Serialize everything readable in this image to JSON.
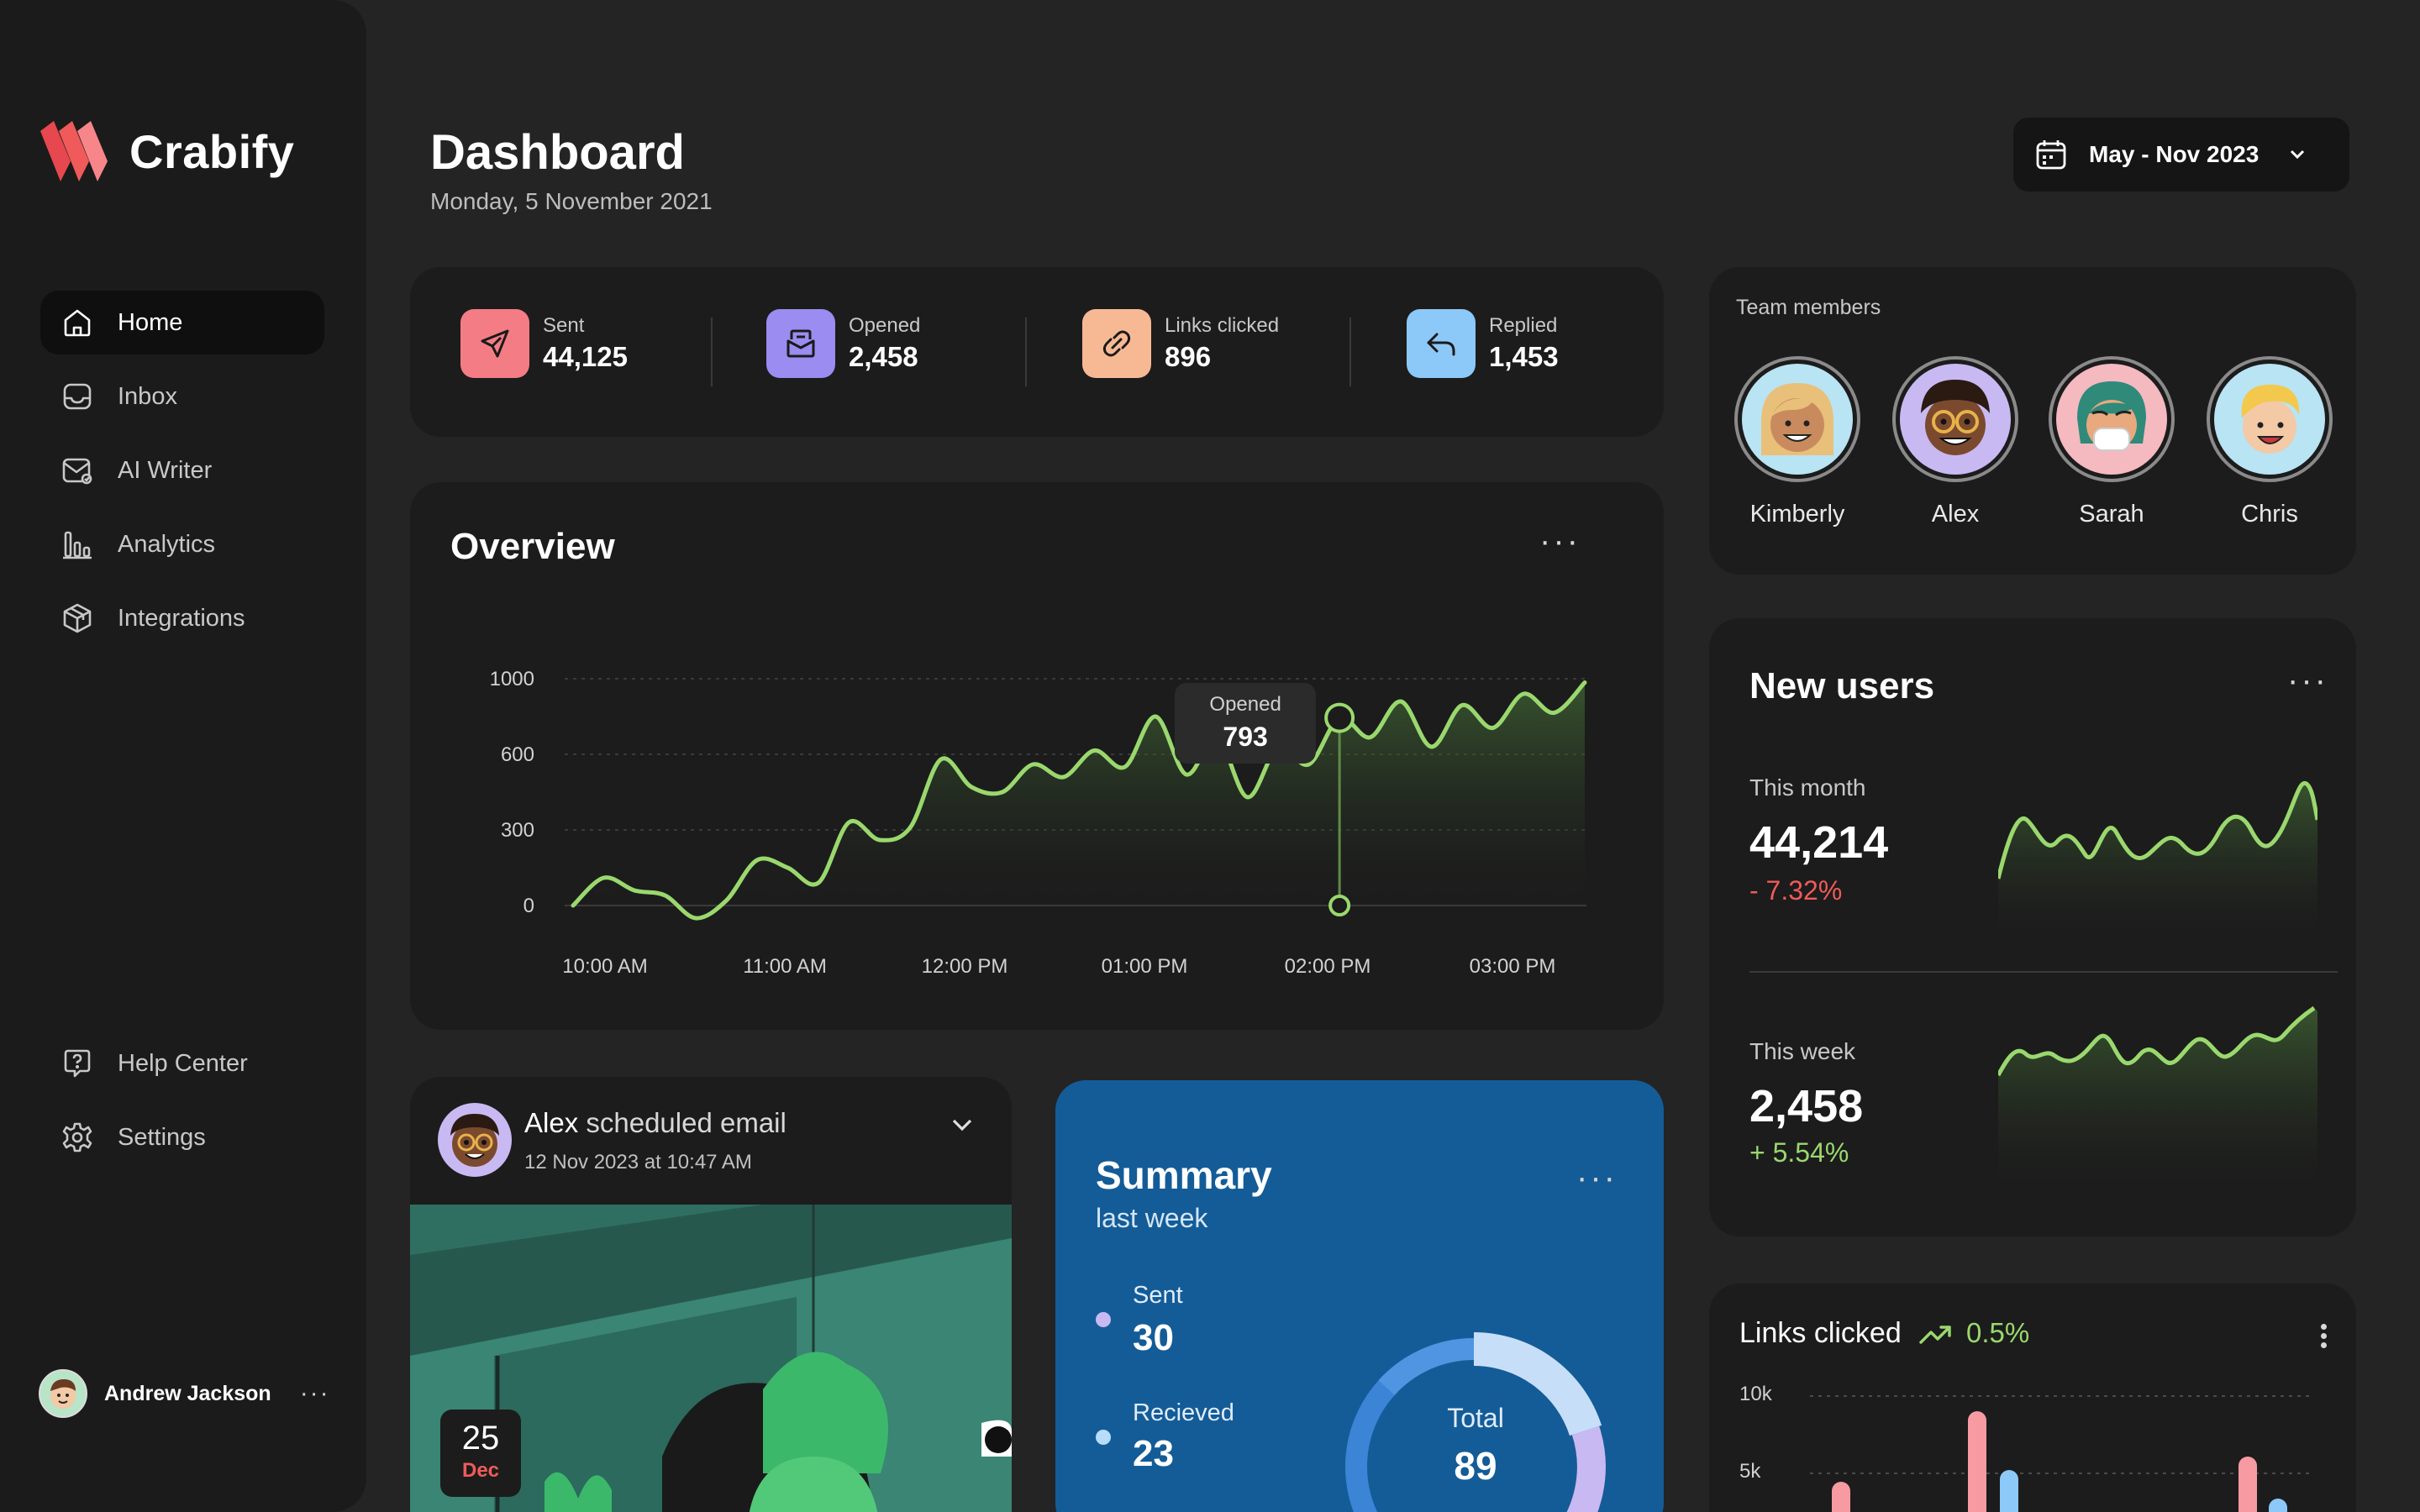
{
  "app": {
    "name": "Crabify"
  },
  "sidebar": {
    "items": [
      {
        "label": "Home",
        "icon": "home-icon",
        "active": true
      },
      {
        "label": "Inbox",
        "icon": "inbox-icon"
      },
      {
        "label": "AI Writer",
        "icon": "ai-writer-icon"
      },
      {
        "label": "Analytics",
        "icon": "analytics-icon"
      },
      {
        "label": "Integrations",
        "icon": "integrations-icon"
      }
    ],
    "bottom_items": [
      {
        "label": "Help Center",
        "icon": "help-icon"
      },
      {
        "label": "Settings",
        "icon": "gear-icon"
      }
    ],
    "user": {
      "name": "Andrew Jackson",
      "more": "···"
    }
  },
  "header": {
    "title": "Dashboard",
    "date": "Monday, 5 November 2021",
    "date_range": "May - Nov 2023"
  },
  "stats": [
    {
      "label": "Sent",
      "value": "44,125",
      "color": "#f47c84",
      "icon": "send-icon"
    },
    {
      "label": "Opened",
      "value": "2,458",
      "color": "#9a8cf0",
      "icon": "opened-mail-icon"
    },
    {
      "label": "Links clicked",
      "value": "896",
      "color": "#f7b994",
      "icon": "link-icon"
    },
    {
      "label": "Replied",
      "value": "1,453",
      "color": "#8cc8f8",
      "icon": "reply-icon"
    }
  ],
  "overview": {
    "title": "Overview",
    "more": "···",
    "tooltip": {
      "label": "Opened",
      "value": "793"
    }
  },
  "chart_data": {
    "type": "area",
    "title": "Overview",
    "x_ticks": [
      "10:00 AM",
      "11:00 AM",
      "12:00 PM",
      "01:00 PM",
      "02:00 PM",
      "03:00 PM"
    ],
    "y_ticks": [
      "1000",
      "600",
      "300",
      "0"
    ],
    "ylim": [
      0,
      1000
    ],
    "series": [
      {
        "values": [
          0,
          110,
          60,
          40,
          -50,
          20,
          180,
          150,
          90,
          330,
          260,
          310,
          580,
          470,
          450,
          560,
          510,
          620,
          550,
          800,
          520,
          690,
          430,
          640,
          560,
          793,
          690,
          880,
          640,
          860,
          740,
          920,
          820,
          980
        ],
        "color": "#9ad86e"
      }
    ],
    "highlight": {
      "index": 25,
      "label": "Opened",
      "value": 793
    }
  },
  "team": {
    "title": "Team members",
    "members": [
      {
        "name": "Kimberly",
        "bg": "#b8e4f4"
      },
      {
        "name": "Alex",
        "bg": "#c9b9f2"
      },
      {
        "name": "Sarah",
        "bg": "#f5b9c0"
      },
      {
        "name": "Chris",
        "bg": "#b8e4f4"
      }
    ]
  },
  "new_users": {
    "title": "New users",
    "more": "···",
    "month": {
      "label": "This month",
      "value": "44,214",
      "change": "- 7.32%",
      "color": "#f05a5a"
    },
    "week": {
      "label": "This week",
      "value": "2,458",
      "change": "+ 5.54%",
      "color": "#9ad86e"
    }
  },
  "scheduled": {
    "title_name": "Alex",
    "title_rest": " scheduled email",
    "subtitle": "12 Nov 2023 at 10:47 AM",
    "day": "25",
    "month": "Dec"
  },
  "summary": {
    "title": "Summary",
    "subtitle": "last week",
    "more": "···",
    "sent": {
      "label": "Sent",
      "value": "30"
    },
    "received": {
      "label": "Recieved",
      "value": "23"
    },
    "total": {
      "label": "Total",
      "value": "89"
    }
  },
  "links_clicked": {
    "title": "Links clicked",
    "change": "0.5%",
    "y_ticks": [
      "10k",
      "5k"
    ]
  }
}
